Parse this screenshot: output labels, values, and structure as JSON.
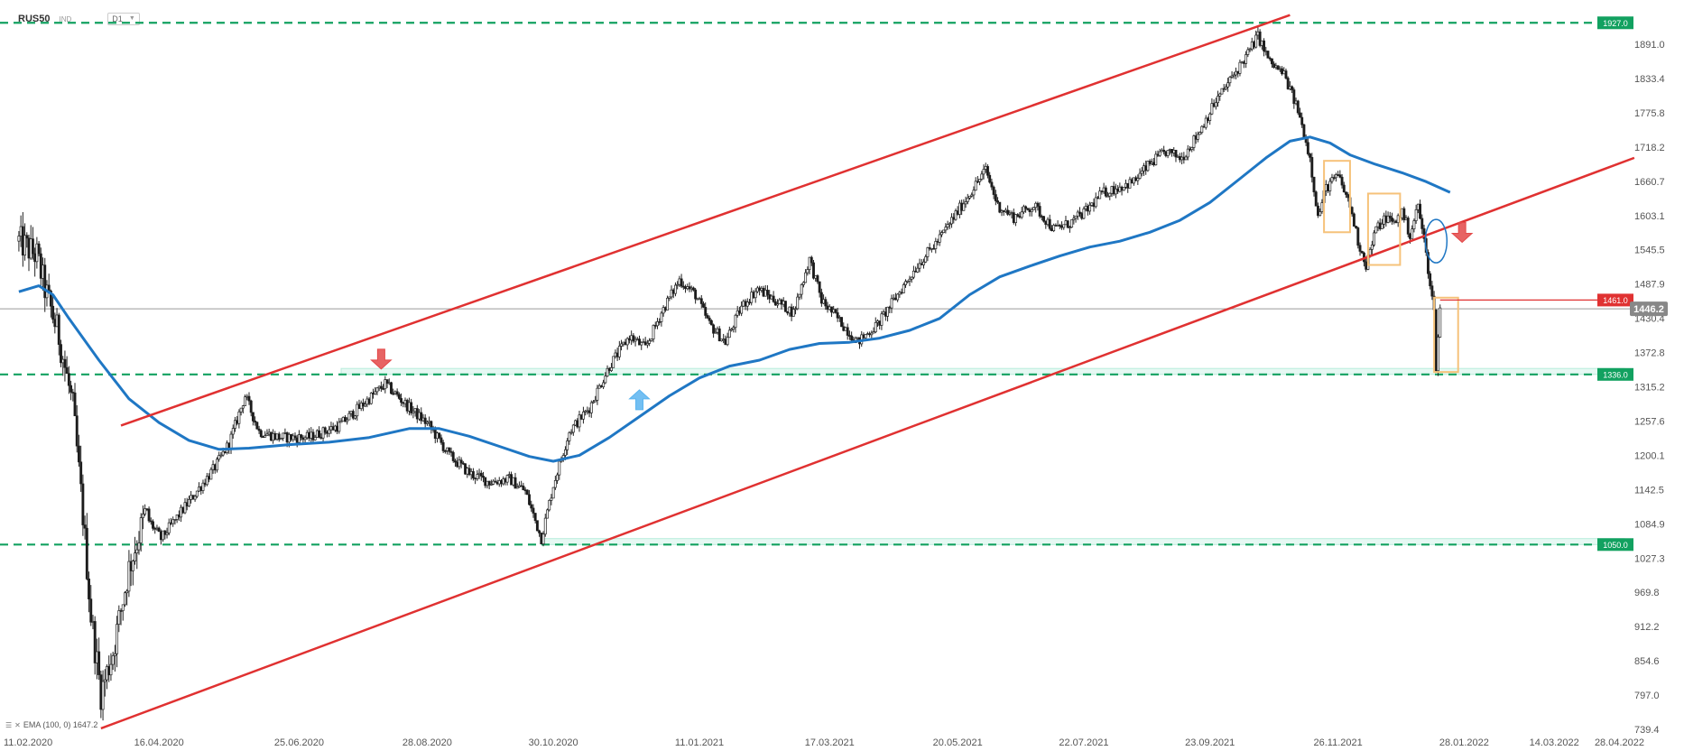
{
  "header": {
    "symbol": "RUS50",
    "type": "IND",
    "timeframe": "D1"
  },
  "indicator": {
    "label": "EMA (100, 0) 1647.2"
  },
  "chart_data": {
    "type": "candlestick",
    "symbol": "RUS50",
    "timeframe": "D1",
    "ylim": [
      739.4,
      1950
    ],
    "y_ticks": [
      {
        "label": "1891.0",
        "value": 1891.0
      },
      {
        "label": "1833.4",
        "value": 1833.4
      },
      {
        "label": "1775.8",
        "value": 1775.8
      },
      {
        "label": "1718.2",
        "value": 1718.2
      },
      {
        "label": "1660.7",
        "value": 1660.7
      },
      {
        "label": "1603.1",
        "value": 1603.1
      },
      {
        "label": "1545.5",
        "value": 1545.5
      },
      {
        "label": "1487.9",
        "value": 1487.9
      },
      {
        "label": "1430.4",
        "value": 1430.4
      },
      {
        "label": "1372.8",
        "value": 1372.8
      },
      {
        "label": "1315.2",
        "value": 1315.2
      },
      {
        "label": "1257.6",
        "value": 1257.6
      },
      {
        "label": "1200.1",
        "value": 1200.1
      },
      {
        "label": "1142.5",
        "value": 1142.5
      },
      {
        "label": "1084.9",
        "value": 1084.9
      },
      {
        "label": "1027.3",
        "value": 1027.3
      },
      {
        "label": "969.8",
        "value": 969.8
      },
      {
        "label": "912.2",
        "value": 912.2
      },
      {
        "label": "854.6",
        "value": 854.6
      },
      {
        "label": "797.0",
        "value": 797.0
      },
      {
        "label": "739.4",
        "value": 739.4
      }
    ],
    "x_ticks": [
      {
        "label": "11.02.2020",
        "day": 0
      },
      {
        "label": "16.04.2020",
        "day": 65
      },
      {
        "label": "25.06.2020",
        "day": 135
      },
      {
        "label": "28.08.2020",
        "day": 199
      },
      {
        "label": "30.10.2020",
        "day": 262
      },
      {
        "label": "11.01.2021",
        "day": 335
      },
      {
        "label": "17.03.2021",
        "day": 400
      },
      {
        "label": "20.05.2021",
        "day": 464
      },
      {
        "label": "22.07.2021",
        "day": 527
      },
      {
        "label": "23.09.2021",
        "day": 590
      },
      {
        "label": "26.11.2021",
        "day": 654
      },
      {
        "label": "28.01.2022",
        "day": 717
      },
      {
        "label": "14.03.2022",
        "day": 762
      },
      {
        "label": "28.04.2022",
        "day": 807
      }
    ],
    "price_anchors": [
      {
        "day": -5,
        "value": 1560
      },
      {
        "day": 4,
        "value": 1535
      },
      {
        "day": 8,
        "value": 1480
      },
      {
        "day": 15,
        "value": 1400
      },
      {
        "day": 22,
        "value": 1280
      },
      {
        "day": 27,
        "value": 1100
      },
      {
        "day": 31,
        "value": 930
      },
      {
        "day": 36,
        "value": 800
      },
      {
        "day": 42,
        "value": 870
      },
      {
        "day": 50,
        "value": 1010
      },
      {
        "day": 58,
        "value": 1100
      },
      {
        "day": 66,
        "value": 1060
      },
      {
        "day": 75,
        "value": 1100
      },
      {
        "day": 84,
        "value": 1140
      },
      {
        "day": 93,
        "value": 1180
      },
      {
        "day": 100,
        "value": 1220
      },
      {
        "day": 108,
        "value": 1300
      },
      {
        "day": 115,
        "value": 1240
      },
      {
        "day": 125,
        "value": 1230
      },
      {
        "day": 140,
        "value": 1230
      },
      {
        "day": 155,
        "value": 1250
      },
      {
        "day": 165,
        "value": 1280
      },
      {
        "day": 178,
        "value": 1320
      },
      {
        "day": 190,
        "value": 1280
      },
      {
        "day": 200,
        "value": 1250
      },
      {
        "day": 210,
        "value": 1200
      },
      {
        "day": 220,
        "value": 1170
      },
      {
        "day": 230,
        "value": 1155
      },
      {
        "day": 240,
        "value": 1160
      },
      {
        "day": 248,
        "value": 1140
      },
      {
        "day": 256,
        "value": 1060
      },
      {
        "day": 262,
        "value": 1150
      },
      {
        "day": 270,
        "value": 1240
      },
      {
        "day": 280,
        "value": 1280
      },
      {
        "day": 290,
        "value": 1350
      },
      {
        "day": 300,
        "value": 1400
      },
      {
        "day": 308,
        "value": 1380
      },
      {
        "day": 316,
        "value": 1440
      },
      {
        "day": 325,
        "value": 1495
      },
      {
        "day": 333,
        "value": 1470
      },
      {
        "day": 340,
        "value": 1420
      },
      {
        "day": 348,
        "value": 1390
      },
      {
        "day": 356,
        "value": 1450
      },
      {
        "day": 364,
        "value": 1480
      },
      {
        "day": 373,
        "value": 1460
      },
      {
        "day": 382,
        "value": 1440
      },
      {
        "day": 390,
        "value": 1530
      },
      {
        "day": 396,
        "value": 1460
      },
      {
        "day": 404,
        "value": 1430
      },
      {
        "day": 414,
        "value": 1390
      },
      {
        "day": 424,
        "value": 1420
      },
      {
        "day": 434,
        "value": 1470
      },
      {
        "day": 444,
        "value": 1520
      },
      {
        "day": 454,
        "value": 1560
      },
      {
        "day": 462,
        "value": 1600
      },
      {
        "day": 470,
        "value": 1640
      },
      {
        "day": 478,
        "value": 1680
      },
      {
        "day": 484,
        "value": 1620
      },
      {
        "day": 492,
        "value": 1600
      },
      {
        "day": 502,
        "value": 1620
      },
      {
        "day": 512,
        "value": 1580
      },
      {
        "day": 520,
        "value": 1590
      },
      {
        "day": 528,
        "value": 1610
      },
      {
        "day": 536,
        "value": 1640
      },
      {
        "day": 544,
        "value": 1650
      },
      {
        "day": 552,
        "value": 1660
      },
      {
        "day": 560,
        "value": 1690
      },
      {
        "day": 568,
        "value": 1710
      },
      {
        "day": 576,
        "value": 1700
      },
      {
        "day": 584,
        "value": 1740
      },
      {
        "day": 592,
        "value": 1790
      },
      {
        "day": 600,
        "value": 1830
      },
      {
        "day": 608,
        "value": 1870
      },
      {
        "day": 614,
        "value": 1905
      },
      {
        "day": 620,
        "value": 1860
      },
      {
        "day": 627,
        "value": 1840
      },
      {
        "day": 634,
        "value": 1780
      },
      {
        "day": 640,
        "value": 1700
      },
      {
        "day": 644,
        "value": 1600
      },
      {
        "day": 648,
        "value": 1650
      },
      {
        "day": 654,
        "value": 1670
      },
      {
        "day": 660,
        "value": 1620
      },
      {
        "day": 664,
        "value": 1560
      },
      {
        "day": 668,
        "value": 1520
      },
      {
        "day": 673,
        "value": 1580
      },
      {
        "day": 678,
        "value": 1600
      },
      {
        "day": 682,
        "value": 1590
      },
      {
        "day": 686,
        "value": 1610
      },
      {
        "day": 690,
        "value": 1570
      },
      {
        "day": 694,
        "value": 1620
      },
      {
        "day": 697,
        "value": 1560
      },
      {
        "day": 700,
        "value": 1490
      },
      {
        "day": 702,
        "value": 1440
      },
      {
        "day": 703,
        "value": 1350
      },
      {
        "day": 705,
        "value": 1446
      }
    ],
    "ema": {
      "label": "EMA (100, 0)",
      "last_value": 1647.2,
      "points": [
        {
          "day": -5,
          "value": 1475
        },
        {
          "day": 5,
          "value": 1485
        },
        {
          "day": 12,
          "value": 1470
        },
        {
          "day": 20,
          "value": 1430
        },
        {
          "day": 35,
          "value": 1360
        },
        {
          "day": 50,
          "value": 1295
        },
        {
          "day": 65,
          "value": 1255
        },
        {
          "day": 80,
          "value": 1225
        },
        {
          "day": 95,
          "value": 1210
        },
        {
          "day": 110,
          "value": 1212
        },
        {
          "day": 130,
          "value": 1218
        },
        {
          "day": 150,
          "value": 1222
        },
        {
          "day": 170,
          "value": 1230
        },
        {
          "day": 190,
          "value": 1245
        },
        {
          "day": 205,
          "value": 1245
        },
        {
          "day": 220,
          "value": 1232
        },
        {
          "day": 235,
          "value": 1215
        },
        {
          "day": 250,
          "value": 1198
        },
        {
          "day": 262,
          "value": 1190
        },
        {
          "day": 275,
          "value": 1200
        },
        {
          "day": 290,
          "value": 1230
        },
        {
          "day": 305,
          "value": 1265
        },
        {
          "day": 320,
          "value": 1300
        },
        {
          "day": 335,
          "value": 1330
        },
        {
          "day": 350,
          "value": 1350
        },
        {
          "day": 365,
          "value": 1360
        },
        {
          "day": 380,
          "value": 1378
        },
        {
          "day": 395,
          "value": 1388
        },
        {
          "day": 410,
          "value": 1390
        },
        {
          "day": 425,
          "value": 1397
        },
        {
          "day": 440,
          "value": 1410
        },
        {
          "day": 455,
          "value": 1430
        },
        {
          "day": 470,
          "value": 1470
        },
        {
          "day": 485,
          "value": 1500
        },
        {
          "day": 500,
          "value": 1518
        },
        {
          "day": 515,
          "value": 1535
        },
        {
          "day": 530,
          "value": 1550
        },
        {
          "day": 545,
          "value": 1560
        },
        {
          "day": 560,
          "value": 1575
        },
        {
          "day": 575,
          "value": 1595
        },
        {
          "day": 590,
          "value": 1625
        },
        {
          "day": 605,
          "value": 1665
        },
        {
          "day": 618,
          "value": 1700
        },
        {
          "day": 630,
          "value": 1728
        },
        {
          "day": 640,
          "value": 1735
        },
        {
          "day": 650,
          "value": 1725
        },
        {
          "day": 660,
          "value": 1705
        },
        {
          "day": 672,
          "value": 1690
        },
        {
          "day": 686,
          "value": 1675
        },
        {
          "day": 698,
          "value": 1660
        },
        {
          "day": 710,
          "value": 1642
        }
      ]
    },
    "channel": [
      {
        "name": "upper",
        "start": {
          "day": 46,
          "value": 1250
        },
        "end": {
          "day": 630,
          "value": 1940
        }
      },
      {
        "name": "lower",
        "start": {
          "day": 36,
          "value": 741
        },
        "end": {
          "day": 802,
          "value": 1700
        }
      }
    ],
    "horizontal_levels": [
      {
        "value": 1927.0,
        "label": "1927.0"
      },
      {
        "value": 1336.0,
        "label": "1336.0"
      },
      {
        "value": 1050.0,
        "label": "1050.0"
      }
    ],
    "support_zones": [
      {
        "from_day": 156,
        "to_day": 800,
        "low": 1336,
        "high": 1346
      },
      {
        "from_day": 256,
        "to_day": 800,
        "low": 1050,
        "high": 1060
      }
    ],
    "marked_level": {
      "value": 1461.0,
      "label": "1461.0",
      "from_day": 705
    },
    "current_price": {
      "value": 1446.2,
      "label": "1446.2"
    },
    "boxes": [
      {
        "from_day": 647,
        "to_day": 660,
        "low": 1575,
        "high": 1695
      },
      {
        "from_day": 669,
        "to_day": 685,
        "low": 1520,
        "high": 1640
      },
      {
        "from_day": 702,
        "to_day": 714,
        "low": 1340,
        "high": 1465
      }
    ],
    "ellipse": {
      "day": 703,
      "value": 1560
    },
    "arrows": [
      {
        "dir": "down",
        "day": 176,
        "value": 1345
      },
      {
        "dir": "up",
        "day": 305,
        "value": 1310
      },
      {
        "dir": "down",
        "day": 716,
        "value": 1558
      }
    ],
    "colors": {
      "up": "#ffffff",
      "down": "#1a1a1a",
      "ema": "#1f77c4",
      "channel": "#e03131",
      "level": "#12a160",
      "zone": "#b8ecdc",
      "box": "#f6c27a",
      "price": "#888888",
      "arrow_down": "#e34848",
      "arrow_up": "#5ab4f0",
      "marked": "#e03131"
    },
    "grid": false
  }
}
